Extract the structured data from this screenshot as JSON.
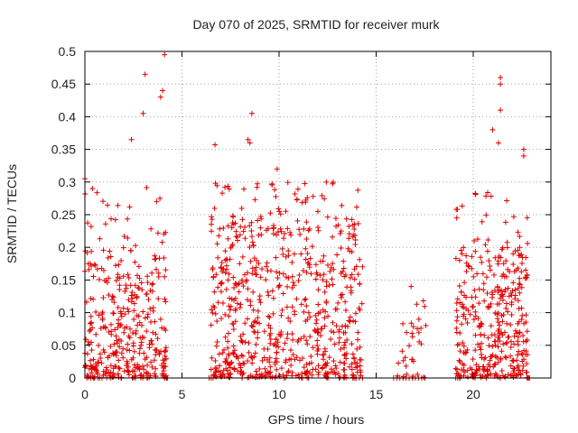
{
  "chart_data": {
    "type": "scatter",
    "title": "Day 070 of 2025, SRMTID for receiver murk",
    "xlabel": "GPS time / hours",
    "ylabel": "SRMTID / TECUs",
    "xlim": [
      0,
      24
    ],
    "ylim": [
      0,
      0.5
    ],
    "xticks": [
      "0",
      "5",
      "10",
      "15",
      "20"
    ],
    "yticks": [
      "0",
      "0.05",
      "0.1",
      "0.15",
      "0.2",
      "0.25",
      "0.3",
      "0.35",
      "0.4",
      "0.45",
      "0.5"
    ],
    "grid": true,
    "marker": "+",
    "color": "#e00000",
    "series": [
      {
        "name": "SRMTID",
        "clusters": [
          {
            "x": [
              0.0,
              4.2
            ],
            "y_typ": [
              0.0,
              0.2
            ],
            "y_max": 0.3,
            "count": 380,
            "highlights": [
              [
                3.1,
                0.465
              ],
              [
                4.1,
                0.495
              ],
              [
                4.0,
                0.44
              ],
              [
                3.9,
                0.43
              ],
              [
                3.0,
                0.405
              ],
              [
                2.4,
                0.365
              ],
              [
                0.0,
                0.305
              ]
            ]
          },
          {
            "x": [
              6.5,
              14.3
            ],
            "y_typ": [
              0.0,
              0.25
            ],
            "y_max": 0.3,
            "count": 700,
            "highlights": [
              [
                8.6,
                0.405
              ],
              [
                8.4,
                0.365
              ],
              [
                8.5,
                0.36
              ],
              [
                6.7,
                0.357
              ],
              [
                9.9,
                0.32
              ],
              [
                12.0,
                0.255
              ],
              [
                13.2,
                0.225
              ]
            ]
          },
          {
            "x": [
              16.0,
              17.6
            ],
            "y_typ": [
              0.0,
              0.09
            ],
            "y_max": 0.14,
            "count": 30,
            "highlights": [
              [
                16.8,
                0.14
              ],
              [
                17.2,
                0.09
              ]
            ]
          },
          {
            "x": [
              19.1,
              22.8
            ],
            "y_typ": [
              0.0,
              0.2
            ],
            "y_max": 0.3,
            "count": 380,
            "highlights": [
              [
                21.4,
                0.46
              ],
              [
                21.4,
                0.45
              ],
              [
                21.4,
                0.41
              ],
              [
                21.0,
                0.38
              ],
              [
                21.3,
                0.36
              ],
              [
                22.6,
                0.35
              ],
              [
                22.6,
                0.34
              ],
              [
                19.3,
                0.18
              ]
            ]
          }
        ],
        "zero_runs": [
          [
            0.1,
            0.5
          ],
          [
            4.2,
            4.25
          ],
          [
            6.4,
            6.6
          ],
          [
            13.8,
            14.3
          ],
          [
            15.9,
            17.5
          ],
          [
            19.1,
            19.3
          ],
          [
            22.8,
            22.9
          ]
        ]
      }
    ]
  }
}
